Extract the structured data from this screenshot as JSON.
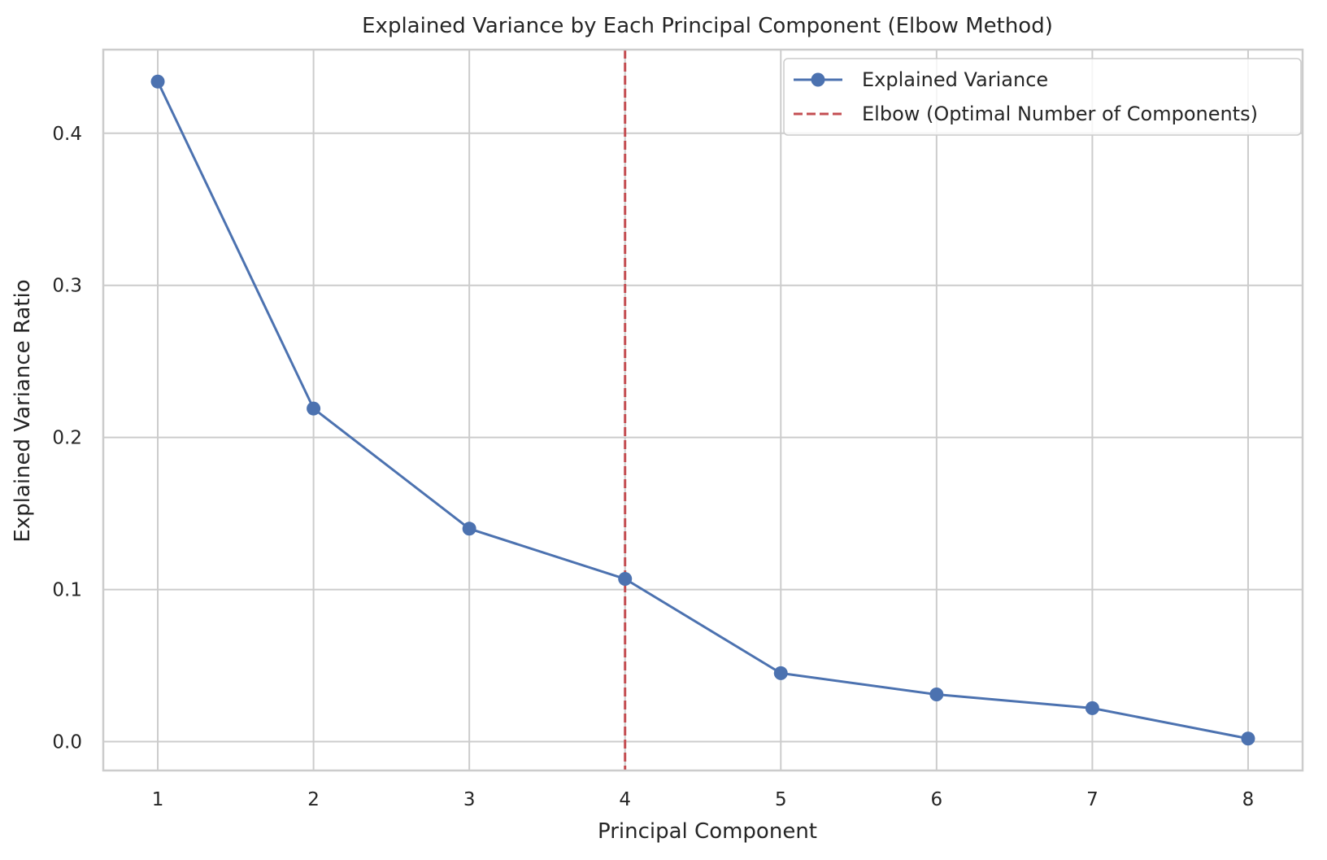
{
  "chart_data": {
    "type": "line",
    "title": "Explained Variance by Each Principal Component (Elbow Method)",
    "xlabel": "Principal Component",
    "ylabel": "Explained Variance Ratio",
    "x": [
      1,
      2,
      3,
      4,
      5,
      6,
      7,
      8
    ],
    "xticks": [
      "1",
      "2",
      "3",
      "4",
      "5",
      "6",
      "7",
      "8"
    ],
    "yticks": [
      "0.0",
      "0.1",
      "0.2",
      "0.3",
      "0.4"
    ],
    "xlim": [
      0.65,
      8.35
    ],
    "ylim": [
      -0.019,
      0.455
    ],
    "grid": true,
    "legend_position": "top-right",
    "series": [
      {
        "name": "Explained Variance",
        "color": "#4c72b0",
        "marker": "circle",
        "values": [
          0.434,
          0.219,
          0.14,
          0.107,
          0.045,
          0.031,
          0.022,
          0.002
        ]
      }
    ],
    "reference_lines": [
      {
        "name": "Elbow (Optimal Number of Components)",
        "orientation": "vertical",
        "x": 4,
        "color": "#c44e52",
        "style": "dashed"
      }
    ]
  }
}
